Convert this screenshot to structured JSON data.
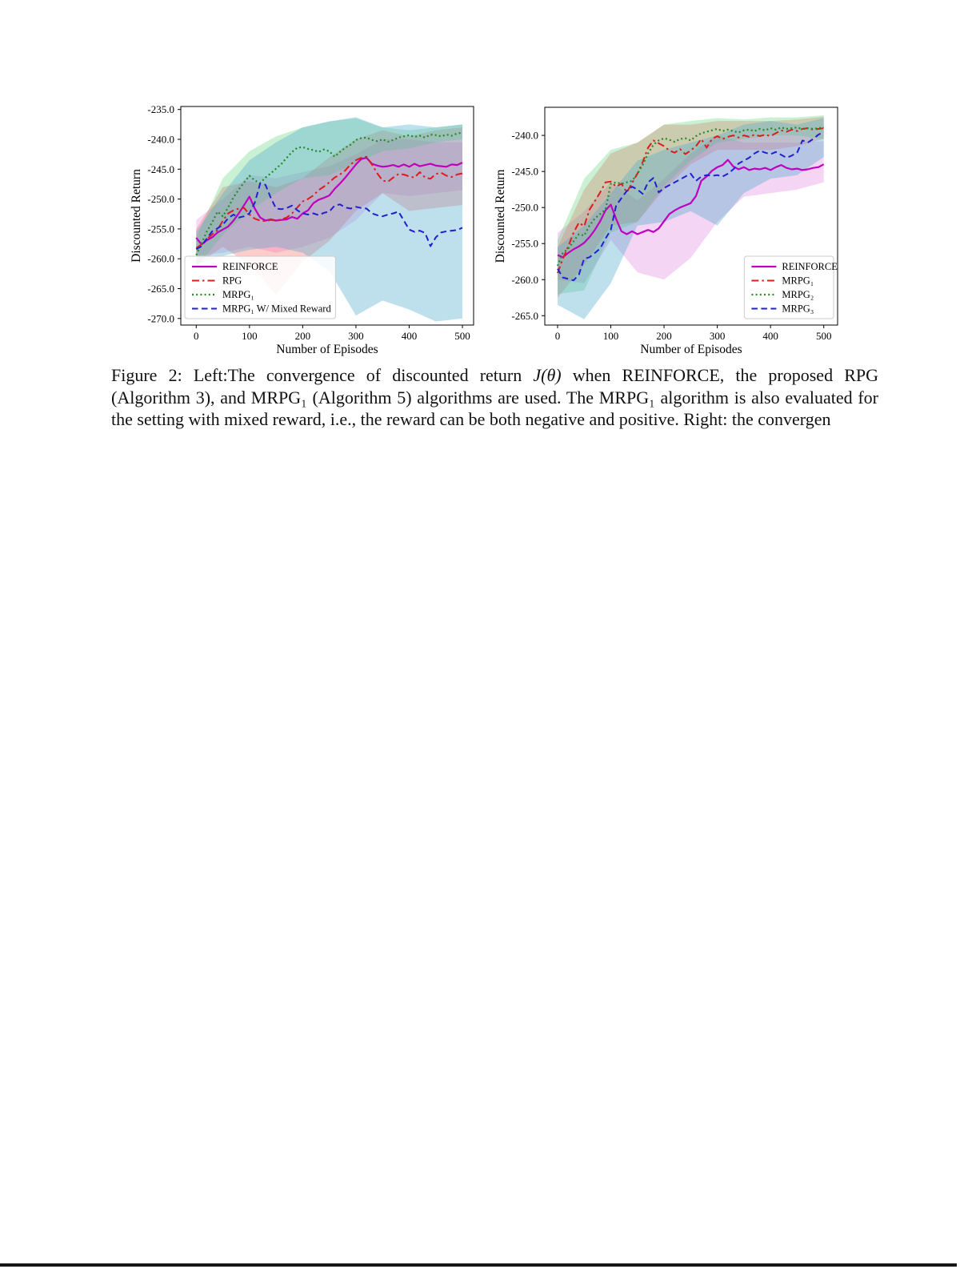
{
  "caption": {
    "part1": "Figure 2: Left:The convergence of discounted return ",
    "part2": "J(θ)",
    "part3": " when REINFORCE, the proposed RPG (Algorithm 3), and MRPG₁ (Algorithm 5) algorithms are used. The MRPG₁ algorithm is also evaluated for the setting with mixed reward, i.e., the reward can be both negative and positive. Right: the convergen"
  },
  "chart_data": [
    {
      "type": "line",
      "title": "",
      "xlabel": "Number of Episodes",
      "ylabel": "Discounted Return",
      "xlim": [
        -29,
        521
      ],
      "ylim": [
        -271.1,
        -234.5
      ],
      "x_step": 10,
      "grid": false,
      "legend_loc": "lower-left",
      "xticks": [
        [
          0,
          "0"
        ],
        [
          100,
          "100"
        ],
        [
          200,
          "200"
        ],
        [
          300,
          "300"
        ],
        [
          400,
          "400"
        ],
        [
          500,
          "500"
        ]
      ],
      "yticks": [
        [
          -235,
          "-235.0"
        ],
        [
          -240,
          "-240.0"
        ],
        [
          -245,
          "-245.0"
        ],
        [
          -250,
          "-250.0"
        ],
        [
          -255,
          "-255.0"
        ],
        [
          -260,
          "-260.0"
        ],
        [
          -265,
          "-265.0"
        ],
        [
          -270,
          "-270.0"
        ]
      ],
      "series": [
        {
          "name": "REINFORCE",
          "color": "#bf00bf",
          "style": "solid",
          "lw": 2.2,
          "values": [
            -256.5,
            -257.6,
            -256.9,
            -256.4,
            -255.6,
            -255.1,
            -254.6,
            -253.6,
            -252.4,
            -251.0,
            -249.6,
            -251.6,
            -253.1,
            -253.6,
            -253.4,
            -253.6,
            -253.5,
            -253.4,
            -253.0,
            -253.3,
            -252.4,
            -251.9,
            -250.7,
            -250.1,
            -249.8,
            -249.4,
            -248.3,
            -247.4,
            -246.4,
            -245.3,
            -244.2,
            -243.3,
            -243.1,
            -244.1,
            -244.4,
            -244.6,
            -244.5,
            -244.3,
            -244.6,
            -244.2,
            -244.6,
            -244.1,
            -244.5,
            -244.3,
            -244.1,
            -244.4,
            -244.5,
            -244.6,
            -244.2,
            -244.3,
            -243.9
          ],
          "band": {
            "x": [
              0,
              50,
              100,
              150,
              200,
              250,
              300,
              350,
              400,
              450,
              500
            ],
            "hi": [
              -253.5,
              -250.0,
              -246.0,
              -246.5,
              -245.5,
              -244.5,
              -242.5,
              -240.0,
              -240.0,
              -240.5,
              -240.5
            ],
            "lo": [
              -259.5,
              -259.0,
              -258.0,
              -259.0,
              -258.0,
              -256.5,
              -253.5,
              -249.0,
              -249.5,
              -249.0,
              -248.5
            ],
            "fill": "#cc44cc",
            "opacity": 0.2
          }
        },
        {
          "name": "RPG",
          "color": "#dd1c1c",
          "style": "dashdot",
          "lw": 2,
          "values": [
            -258.2,
            -257.6,
            -256.7,
            -255.9,
            -255.2,
            -253.6,
            -252.4,
            -251.9,
            -251.6,
            -251.5,
            -252.6,
            -253.3,
            -253.6,
            -253.7,
            -253.5,
            -253.6,
            -253.4,
            -253.1,
            -252.4,
            -251.4,
            -250.4,
            -250.0,
            -249.4,
            -248.5,
            -247.9,
            -247.2,
            -246.4,
            -245.9,
            -245.2,
            -244.2,
            -243.5,
            -243.1,
            -242.9,
            -244.2,
            -245.7,
            -246.9,
            -247.1,
            -246.4,
            -245.8,
            -245.9,
            -246.2,
            -246.4,
            -245.5,
            -246.4,
            -246.6,
            -245.8,
            -245.6,
            -246.1,
            -246.3,
            -245.9,
            -245.7
          ],
          "band": {
            "x": [
              0,
              50,
              100,
              150,
              200,
              250,
              300,
              350,
              400,
              450,
              500
            ],
            "hi": [
              -255.0,
              -248.0,
              -247.0,
              -248.0,
              -246.5,
              -243.0,
              -240.0,
              -238.5,
              -239.5,
              -238.5,
              -238.0
            ],
            "lo": [
              -261.0,
              -258.0,
              -261.0,
              -266.0,
              -260.5,
              -257.0,
              -252.0,
              -249.0,
              -252.0,
              -251.5,
              -251.0
            ],
            "fill": "#ff5555",
            "opacity": 0.3
          }
        },
        {
          "name": "MRPG₁",
          "color": "#268b26",
          "style": "dotted",
          "lw": 2.2,
          "values": [
            -259.4,
            -257.4,
            -255.4,
            -253.9,
            -252.1,
            -252.9,
            -251.4,
            -249.7,
            -248.4,
            -247.2,
            -246.1,
            -246.9,
            -247.3,
            -246.4,
            -245.7,
            -244.9,
            -244.1,
            -243.1,
            -242.1,
            -241.4,
            -241.3,
            -241.6,
            -241.8,
            -242.1,
            -241.7,
            -242.0,
            -242.9,
            -242.1,
            -241.4,
            -240.9,
            -240.1,
            -239.8,
            -239.7,
            -240.1,
            -240.3,
            -240.0,
            -240.4,
            -240.1,
            -239.7,
            -239.5,
            -239.3,
            -239.6,
            -239.4,
            -239.7,
            -239.2,
            -239.3,
            -239.5,
            -239.2,
            -239.4,
            -239.0,
            -238.9
          ],
          "band": {
            "x": [
              0,
              50,
              100,
              150,
              200,
              250,
              300,
              350,
              400,
              450,
              500
            ],
            "hi": [
              -256.5,
              -246.5,
              -242.0,
              -239.5,
              -238.0,
              -237.0,
              -236.5,
              -238.0,
              -238.5,
              -238.0,
              -237.5
            ],
            "lo": [
              -261.5,
              -256.0,
              -252.0,
              -249.0,
              -246.5,
              -246.0,
              -244.0,
              -242.0,
              -241.5,
              -240.5,
              -240.0
            ],
            "fill": "#44cc66",
            "opacity": 0.28
          }
        },
        {
          "name": "MRPG₁ W/ Mixed Reward",
          "color": "#2020d0",
          "style": "dashed",
          "lw": 2,
          "values": [
            -258.4,
            -257.9,
            -256.6,
            -255.4,
            -254.9,
            -254.3,
            -253.2,
            -252.6,
            -253.1,
            -252.9,
            -252.4,
            -250.6,
            -247.4,
            -247.6,
            -249.8,
            -251.6,
            -251.7,
            -251.5,
            -251.1,
            -251.9,
            -252.4,
            -252.6,
            -252.4,
            -252.7,
            -252.3,
            -252.1,
            -251.1,
            -250.9,
            -251.4,
            -251.6,
            -251.3,
            -251.5,
            -251.6,
            -252.4,
            -252.7,
            -252.9,
            -252.6,
            -252.4,
            -252.1,
            -253.6,
            -255.1,
            -255.5,
            -255.3,
            -255.7,
            -257.9,
            -256.4,
            -255.6,
            -255.4,
            -255.3,
            -255.2,
            -254.8
          ],
          "band": {
            "x": [
              0,
              50,
              100,
              150,
              200,
              250,
              300,
              350,
              400,
              450,
              500
            ],
            "hi": [
              -255.5,
              -249.0,
              -243.5,
              -240.5,
              -238.0,
              -237.0,
              -236.3,
              -238.0,
              -237.5,
              -238.0,
              -237.5
            ],
            "lo": [
              -261.0,
              -259.5,
              -258.5,
              -258.0,
              -259.0,
              -262.0,
              -269.5,
              -267.0,
              -268.5,
              -270.5,
              -270.0
            ],
            "fill": "#55aacc",
            "opacity": 0.38
          }
        }
      ]
    },
    {
      "type": "line",
      "title": "",
      "xlabel": "Number of Episodes",
      "ylabel": "Discounted Return",
      "xlim": [
        -24,
        526
      ],
      "ylim": [
        -266.3,
        -236.1
      ],
      "x_step": 10,
      "grid": false,
      "legend_loc": "lower-right",
      "xticks": [
        [
          0,
          "0"
        ],
        [
          100,
          "100"
        ],
        [
          200,
          "200"
        ],
        [
          300,
          "300"
        ],
        [
          400,
          "400"
        ],
        [
          500,
          "500"
        ]
      ],
      "yticks": [
        [
          -240,
          "-240.0"
        ],
        [
          -245,
          "-245.0"
        ],
        [
          -250,
          "-250.0"
        ],
        [
          -255,
          "-255.0"
        ],
        [
          -260,
          "-260.0"
        ],
        [
          -265,
          "-265.0"
        ]
      ],
      "series": [
        {
          "name": "REINFORCE",
          "color": "#bf00bf",
          "style": "solid",
          "lw": 2.2,
          "values": [
            -256.6,
            -256.9,
            -256.3,
            -255.8,
            -255.4,
            -254.9,
            -254.1,
            -253.1,
            -251.9,
            -250.4,
            -249.6,
            -251.6,
            -253.3,
            -253.7,
            -253.3,
            -253.7,
            -253.4,
            -253.1,
            -253.4,
            -252.9,
            -251.9,
            -250.9,
            -250.4,
            -250.0,
            -249.7,
            -249.4,
            -248.4,
            -246.3,
            -245.7,
            -244.9,
            -244.4,
            -244.1,
            -243.4,
            -244.3,
            -244.7,
            -244.4,
            -244.8,
            -244.6,
            -244.7,
            -244.5,
            -244.8,
            -244.4,
            -244.1,
            -244.5,
            -244.7,
            -244.6,
            -244.8,
            -244.7,
            -244.5,
            -244.4,
            -244.0
          ],
          "band": {
            "x": [
              0,
              50,
              100,
              150,
              200,
              250,
              300,
              350,
              400,
              450,
              500
            ],
            "hi": [
              -253.5,
              -250.5,
              -246.5,
              -249.0,
              -246.0,
              -242.5,
              -240.0,
              -241.0,
              -241.0,
              -241.0,
              -240.8
            ],
            "lo": [
              -260.0,
              -260.5,
              -254.5,
              -259.0,
              -260.0,
              -257.0,
              -252.0,
              -248.5,
              -248.0,
              -247.5,
              -246.5
            ],
            "fill": "#cc44cc",
            "opacity": 0.22
          }
        },
        {
          "name": "MRPG₁",
          "color": "#dd1c1c",
          "style": "dashdot",
          "lw": 2,
          "values": [
            -259.1,
            -257.1,
            -255.4,
            -253.5,
            -252.1,
            -252.6,
            -250.3,
            -249.1,
            -247.9,
            -246.5,
            -246.4,
            -247.1,
            -246.7,
            -247.9,
            -246.6,
            -245.3,
            -243.7,
            -241.7,
            -240.7,
            -241.1,
            -241.5,
            -242.1,
            -242.4,
            -241.9,
            -242.6,
            -242.1,
            -241.5,
            -240.5,
            -241.7,
            -240.5,
            -240.1,
            -240.5,
            -240.2,
            -240.0,
            -240.3,
            -240.0,
            -240.2,
            -239.9,
            -240.1,
            -239.9,
            -240.1,
            -239.7,
            -239.3,
            -239.5,
            -239.2,
            -239.4,
            -239.1,
            -239.0,
            -239.2,
            -239.1,
            -239.0
          ],
          "band": {
            "x": [
              0,
              50,
              100,
              150,
              200,
              250,
              300,
              350,
              400,
              450,
              500
            ],
            "hi": [
              -255.5,
              -247.5,
              -242.5,
              -241.0,
              -238.5,
              -238.5,
              -238.0,
              -238.0,
              -238.0,
              -237.8,
              -237.4
            ],
            "lo": [
              -262.5,
              -258.0,
              -252.5,
              -252.0,
              -247.5,
              -244.0,
              -242.0,
              -242.0,
              -242.0,
              -241.5,
              -240.5
            ],
            "fill": "#ff5555",
            "opacity": 0.3
          }
        },
        {
          "name": "MRPG₂",
          "color": "#268b26",
          "style": "dotted",
          "lw": 2.2,
          "values": [
            -258.1,
            -256.3,
            -255.7,
            -254.7,
            -253.7,
            -253.9,
            -252.5,
            -251.5,
            -250.9,
            -250.3,
            -246.7,
            -246.5,
            -246.7,
            -246.5,
            -246.3,
            -245.3,
            -244.1,
            -242.5,
            -241.3,
            -240.7,
            -240.4,
            -240.6,
            -240.9,
            -240.5,
            -240.4,
            -240.7,
            -240.1,
            -239.7,
            -239.5,
            -239.3,
            -239.1,
            -239.4,
            -239.2,
            -239.4,
            -239.6,
            -239.3,
            -239.2,
            -239.4,
            -239.1,
            -239.3,
            -239.0,
            -239.2,
            -238.9,
            -239.1,
            -239.0,
            -238.9,
            -239.1,
            -239.0,
            -239.1,
            -239.0,
            -238.9
          ],
          "band": {
            "x": [
              0,
              50,
              100,
              150,
              200,
              250,
              300,
              350,
              400,
              450,
              500
            ],
            "hi": [
              -254.5,
              -246.0,
              -242.0,
              -241.0,
              -238.5,
              -238.0,
              -237.6,
              -237.8,
              -237.5,
              -237.5,
              -237.2
            ],
            "lo": [
              -262.0,
              -261.5,
              -253.5,
              -252.0,
              -247.0,
              -243.5,
              -241.0,
              -240.5,
              -240.0,
              -240.0,
              -240.5
            ],
            "fill": "#44cc66",
            "opacity": 0.28
          }
        },
        {
          "name": "MRPG₃",
          "color": "#2020d0",
          "style": "dashed",
          "lw": 2,
          "values": [
            -258.5,
            -259.7,
            -259.9,
            -260.1,
            -259.3,
            -257.1,
            -256.9,
            -256.3,
            -255.7,
            -254.3,
            -253.1,
            -249.7,
            -248.7,
            -247.7,
            -247.1,
            -247.5,
            -248.1,
            -246.5,
            -245.9,
            -247.9,
            -247.3,
            -246.9,
            -246.5,
            -246.1,
            -245.7,
            -245.3,
            -246.3,
            -245.7,
            -245.5,
            -245.6,
            -245.5,
            -245.7,
            -245.3,
            -244.7,
            -243.9,
            -243.5,
            -243.1,
            -242.5,
            -242.1,
            -242.4,
            -242.6,
            -242.3,
            -242.7,
            -243.1,
            -242.8,
            -242.4,
            -240.7,
            -241.0,
            -240.5,
            -239.9,
            -239.5
          ],
          "band": {
            "x": [
              0,
              50,
              100,
              150,
              200,
              250,
              300,
              350,
              400,
              450,
              500
            ],
            "hi": [
              -255.5,
              -252.5,
              -248.0,
              -243.5,
              -242.0,
              -241.0,
              -240.0,
              -238.5,
              -238.0,
              -238.5,
              -237.6
            ],
            "lo": [
              -263.5,
              -265.5,
              -260.5,
              -252.5,
              -252.0,
              -250.5,
              -252.5,
              -248.0,
              -246.0,
              -245.5,
              -243.0
            ],
            "fill": "#55aacc",
            "opacity": 0.38
          }
        }
      ]
    }
  ]
}
